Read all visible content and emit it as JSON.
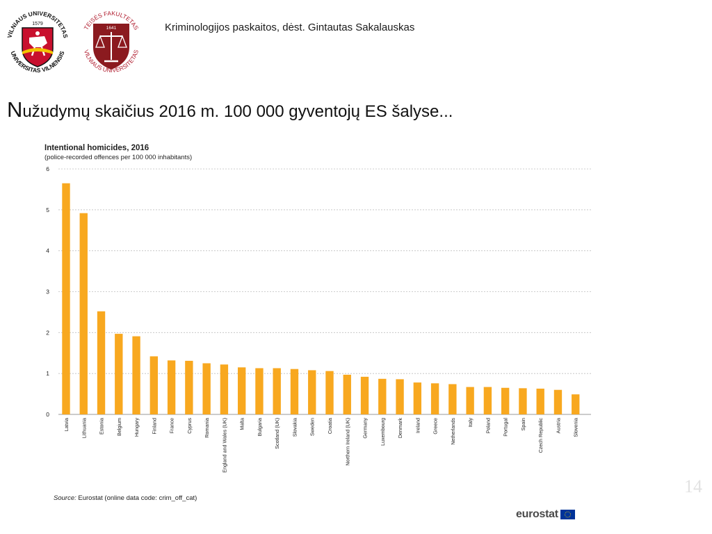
{
  "header": {
    "course": "Kriminologijos paskaitos, dėst. Gintautas Sakalauskas",
    "logo_vu_text_top": "VILNIAUS UNIVERSITETAS",
    "logo_vu_text_bottom": "UNIVERSITAS VILNENSIS",
    "logo_vu_year": "1579",
    "logo_tf_text_top": "TEISĖS FAKULTETAS",
    "logo_tf_text_bottom": "VILNIAUS UNIVERSITETAS",
    "logo_tf_year": "1641"
  },
  "slide": {
    "title_first": "N",
    "title_rest": "užudymų skaičius 2016 m. 100 000 gyventojų ES šalyse...",
    "page_number": "14"
  },
  "source": {
    "label": "Source:",
    "text": " Eurostat (online data code: crim_off_cat)"
  },
  "brand": {
    "name": "eurostat"
  },
  "colors": {
    "bar": "#F8A81F",
    "grid": "#bfbfbf",
    "vu_red": "#c8102e",
    "tf_red": "#8b1a1f"
  },
  "chart_data": {
    "type": "bar",
    "title": "Intentional homicides, 2016",
    "subtitle": "(police-recorded  offences  per 100 000 inhabitants)",
    "ylim": [
      0,
      6
    ],
    "yticks": [
      0,
      1,
      2,
      3,
      4,
      5,
      6
    ],
    "grid": true,
    "categories": [
      "Latvia",
      "Lithuania",
      "Estonia",
      "Belgium",
      "Hungary",
      "Finland",
      "France",
      "Cyprus",
      "Romania",
      "England and Wales (UK)",
      "Malta",
      "Bulgaria",
      "Scotland (UK)",
      "Slovakia",
      "Sweden",
      "Croatia",
      "Northern Ireland (UK)",
      "Germany",
      "Luxembourg",
      "Denmark",
      "Ireland",
      "Greece",
      "Netherlands",
      "Italy",
      "Poland",
      "Portugal",
      "Spain",
      "Czech Republic",
      "Austria",
      "Slovenia"
    ],
    "values": [
      5.65,
      4.92,
      2.52,
      1.97,
      1.91,
      1.42,
      1.32,
      1.31,
      1.25,
      1.22,
      1.15,
      1.13,
      1.13,
      1.11,
      1.08,
      1.06,
      0.97,
      0.92,
      0.87,
      0.86,
      0.78,
      0.76,
      0.74,
      0.67,
      0.67,
      0.65,
      0.64,
      0.63,
      0.6,
      0.49
    ]
  }
}
